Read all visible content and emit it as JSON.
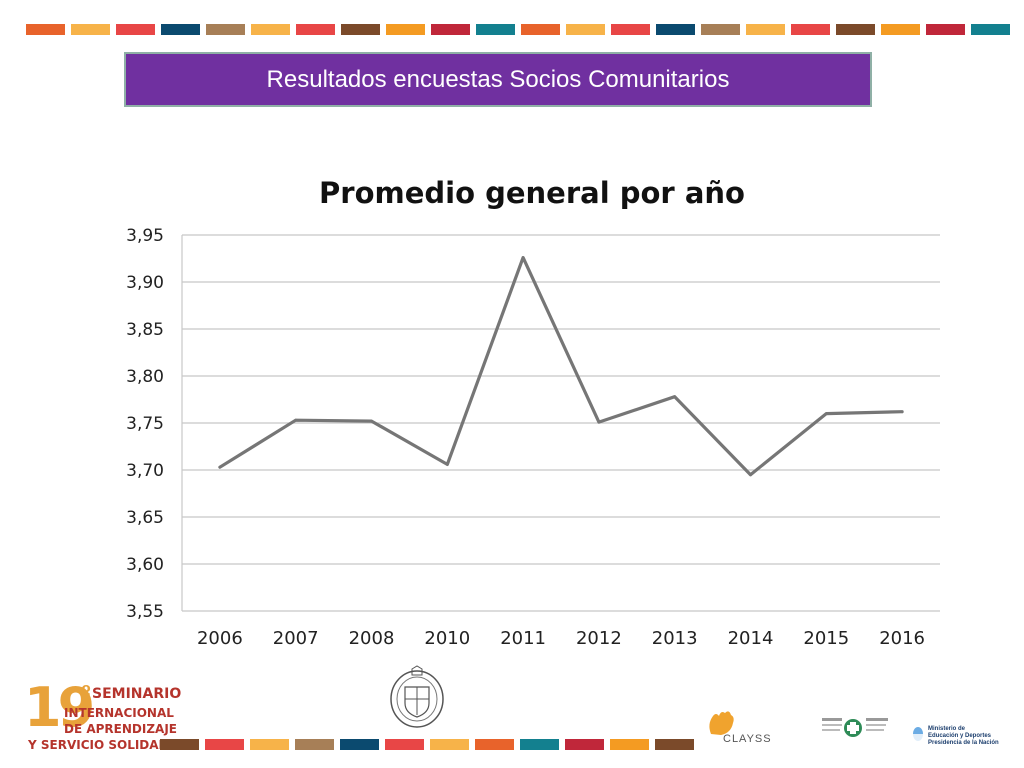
{
  "slide": {
    "banner_title": "Resultados encuestas Socios Comunitarios",
    "banner_color": "#7030a0",
    "stripe_colors": [
      "#e8632b",
      "#f7b349",
      "#e84646",
      "#0b4a6f",
      "#a77f57",
      "#f7b349",
      "#e84646",
      "#7b4a2a",
      "#f49b22",
      "#c0273a",
      "#13808f",
      "#e8632b",
      "#f7b349",
      "#e84646",
      "#0b4a6f",
      "#a77f57",
      "#f7b349",
      "#e84646",
      "#7b4a2a",
      "#f49b22",
      "#c0273a",
      "#13808f"
    ],
    "bottom_stripe_colors": [
      "#7b4a2a",
      "#e84646",
      "#f7b349",
      "#a77f57",
      "#0b4a6f",
      "#e84646",
      "#f7b349",
      "#e8632b",
      "#13808f",
      "#c0273a",
      "#f49b22",
      "#7b4a2a"
    ]
  },
  "chart_data": {
    "type": "line",
    "title": "Promedio general por año",
    "xlabel": "",
    "ylabel": "",
    "categories": [
      "2006",
      "2007",
      "2008",
      "2010",
      "2011",
      "2012",
      "2013",
      "2014",
      "2015",
      "2016"
    ],
    "series": [
      {
        "values": [
          3.703,
          3.753,
          3.752,
          3.706,
          3.926,
          3.751,
          3.778,
          3.695,
          3.76,
          3.762
        ],
        "color": "#767676"
      }
    ],
    "ylim": [
      3.55,
      3.95
    ],
    "yticks": [
      "3,55",
      "3,60",
      "3,65",
      "3,70",
      "3,75",
      "3,80",
      "3,85",
      "3,90",
      "3,95"
    ],
    "ytick_values": [
      3.55,
      3.6,
      3.65,
      3.7,
      3.75,
      3.8,
      3.85,
      3.9,
      3.95
    ],
    "grid": true,
    "legend": "none"
  },
  "footer": {
    "seminar_number": "19",
    "seminar_degree": "º",
    "seminar_line1": "SEMINARIO",
    "seminar_line2": "INTERNACIONAL",
    "seminar_line3": "DE APRENDIZAJE",
    "seminar_line4": "Y SERVICIO SOLIDARIO",
    "clayss_label": "CLAYSS",
    "ministry_line1": "Ministerio de",
    "ministry_line2": "Educación y Deportes",
    "ministry_line3": "Presidencia de la Nación"
  }
}
